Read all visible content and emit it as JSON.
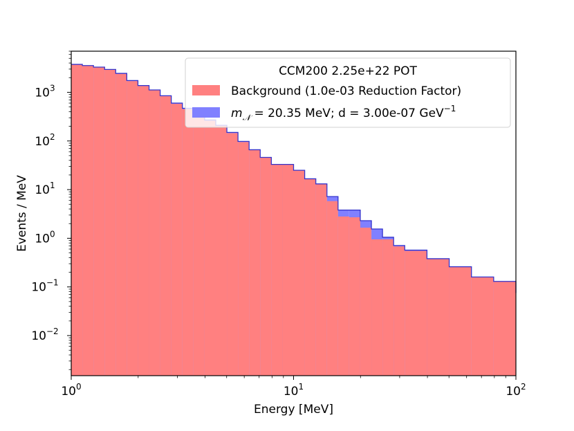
{
  "chart_data": {
    "type": "area",
    "plot_style": "step-histogram",
    "xlabel": "Energy [MeV]",
    "ylabel": "Events / MeV",
    "x_scale": "log",
    "y_scale": "log",
    "xlim": [
      1,
      100
    ],
    "ylim": [
      0.0015,
      7000
    ],
    "x_ticks": [
      {
        "value": 1,
        "base": "10",
        "exp": "0"
      },
      {
        "value": 10,
        "base": "10",
        "exp": "1"
      },
      {
        "value": 100,
        "base": "10",
        "exp": "2"
      }
    ],
    "y_ticks": [
      {
        "value": 0.01,
        "base": "10",
        "exp": "−2"
      },
      {
        "value": 0.1,
        "base": "10",
        "exp": "−1"
      },
      {
        "value": 1,
        "base": "10",
        "exp": "0"
      },
      {
        "value": 10,
        "base": "10",
        "exp": "1"
      },
      {
        "value": 100,
        "base": "10",
        "exp": "2"
      },
      {
        "value": 1000,
        "base": "10",
        "exp": "3"
      }
    ],
    "legend": {
      "title": "CCM200 2.25e+22 POT",
      "placement": "upper-right"
    },
    "bin_edges": [
      1.0,
      1.122,
      1.259,
      1.413,
      1.585,
      1.778,
      1.995,
      2.239,
      2.512,
      2.818,
      3.162,
      3.548,
      3.981,
      4.467,
      5.012,
      5.623,
      6.31,
      7.079,
      7.943,
      8.913,
      10.0,
      11.22,
      12.59,
      14.13,
      15.85,
      17.78,
      19.95,
      22.39,
      25.12,
      28.18,
      31.62,
      39.81,
      50.12,
      63.1,
      79.43,
      100.0
    ],
    "series": [
      {
        "name": "Background (1.0e-03 Reduction Factor)",
        "color": "#ff8080",
        "values": [
          3700,
          3500,
          3250,
          2900,
          2400,
          1700,
          1350,
          1100,
          830,
          580,
          450,
          350,
          260,
          205,
          145,
          95,
          65,
          46,
          33,
          33,
          25,
          16.5,
          13,
          5.8,
          2.8,
          2.7,
          1.65,
          0.95,
          0.95,
          0.68,
          0.55,
          0.38,
          0.26,
          0.16,
          0.13,
          0.075
        ]
      },
      {
        "name_prefix": "m",
        "name_sub": "𝒩",
        "name_suffix": " = 20.35 MeV; d = 3.00e-07 GeV",
        "name_sup": "−1",
        "color": "#8080ff",
        "values": [
          3750,
          3550,
          3300,
          2950,
          2450,
          1750,
          1380,
          1120,
          850,
          600,
          470,
          360,
          270,
          210,
          150,
          98,
          66,
          46,
          33,
          33,
          25,
          16.7,
          13.1,
          7.2,
          3.8,
          3.8,
          2.3,
          1.55,
          1.05,
          0.71,
          0.57,
          0.38,
          0.26,
          0.16,
          0.13,
          0.075
        ]
      }
    ],
    "edge_color": "#3333cc",
    "grid": false
  }
}
